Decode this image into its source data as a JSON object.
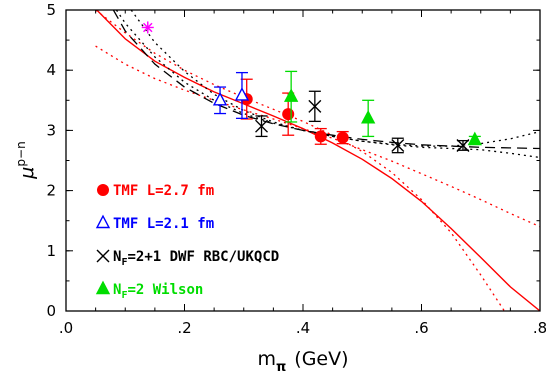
{
  "chart_data": {
    "type": "scatter",
    "title": "",
    "xlabel": {
      "main": "m",
      "sub": "π",
      "unit": "(GeV)"
    },
    "ylabel": {
      "main": "μ",
      "sup": "p−n"
    },
    "xlim": [
      0.0,
      0.8
    ],
    "ylim": [
      0,
      5
    ],
    "xticks": [
      0.0,
      0.2,
      0.4,
      0.6,
      0.8
    ],
    "xtick_labels": [
      ".0",
      ".2",
      ".4",
      ".6",
      ".8"
    ],
    "yticks": [
      0,
      1,
      2,
      3,
      4,
      5
    ],
    "ytick_labels": [
      "0",
      "1",
      "2",
      "3",
      "4",
      "5"
    ],
    "grid": false,
    "legend_position": "bottom-left",
    "series": [
      {
        "name": "TMF L=2.7 fm",
        "legend": {
          "main": "TMF L=2.7 fm"
        },
        "color": "#ff0000",
        "marker": "filled-circle",
        "points": [
          {
            "x": 0.305,
            "y": 3.52,
            "yerr": 0.33
          },
          {
            "x": 0.375,
            "y": 3.27,
            "yerr": 0.35
          },
          {
            "x": 0.43,
            "y": 2.9,
            "yerr": 0.13
          },
          {
            "x": 0.467,
            "y": 2.88,
            "yerr": 0.1
          }
        ]
      },
      {
        "name": "TMF L=2.1 fm",
        "legend": {
          "main": "TMF L=2.1 fm"
        },
        "color": "#0000ff",
        "marker": "open-triangle",
        "points": [
          {
            "x": 0.26,
            "y": 3.5,
            "yerr": 0.22
          },
          {
            "x": 0.297,
            "y": 3.58,
            "yerr": 0.38
          }
        ]
      },
      {
        "name": "NF=2+1 DWF RBC/UKQCD",
        "legend": {
          "pre": "N",
          "sub": "F",
          "post": "=2+1 DWF RBC/UKQCD"
        },
        "color": "#000000",
        "marker": "cross",
        "points": [
          {
            "x": 0.33,
            "y": 3.07,
            "yerr": 0.17
          },
          {
            "x": 0.42,
            "y": 3.4,
            "yerr": 0.25
          },
          {
            "x": 0.56,
            "y": 2.75,
            "yerr": 0.12
          },
          {
            "x": 0.67,
            "y": 2.75,
            "yerr": 0.08
          }
        ]
      },
      {
        "name": "NF=2 Wilson",
        "legend": {
          "pre": "N",
          "sub": "F",
          "post": "=2 Wilson"
        },
        "color": "#00dd00",
        "marker": "filled-triangle",
        "points": [
          {
            "x": 0.38,
            "y": 3.56,
            "yerr": 0.42
          },
          {
            "x": 0.51,
            "y": 3.2,
            "yerr": 0.3
          },
          {
            "x": 0.69,
            "y": 2.84,
            "yerr": 0.06
          }
        ]
      },
      {
        "name": "",
        "color": "#ff00ff",
        "marker": "star",
        "points": [
          {
            "x": 0.138,
            "y": 4.71,
            "yerr": 0
          }
        ]
      }
    ],
    "curves": [
      {
        "style": "solid",
        "color": "#ff0000",
        "x": [
          0.05,
          0.1,
          0.15,
          0.2,
          0.25,
          0.3,
          0.35,
          0.4,
          0.45,
          0.5,
          0.55,
          0.6,
          0.65,
          0.7,
          0.75,
          0.8
        ],
        "y": [
          5.02,
          4.52,
          4.15,
          3.88,
          3.64,
          3.44,
          3.24,
          3.03,
          2.79,
          2.52,
          2.2,
          1.82,
          1.37,
          0.89,
          0.4,
          0.0
        ]
      },
      {
        "style": "dotted",
        "color": "#ff0000",
        "x": [
          0.05,
          0.1,
          0.15,
          0.2,
          0.25,
          0.3,
          0.35,
          0.4,
          0.45,
          0.5,
          0.55,
          0.6,
          0.65,
          0.7,
          0.74
        ],
        "y": [
          5.0,
          4.62,
          4.28,
          4.0,
          3.76,
          3.55,
          3.35,
          3.15,
          2.92,
          2.65,
          2.3,
          1.85,
          1.3,
          0.6,
          0.0
        ]
      },
      {
        "style": "dotted",
        "color": "#ff0000",
        "x": [
          0.05,
          0.1,
          0.15,
          0.2,
          0.25,
          0.3,
          0.35,
          0.4,
          0.45,
          0.5,
          0.55,
          0.6,
          0.65,
          0.7,
          0.75,
          0.8
        ],
        "y": [
          4.4,
          4.1,
          3.86,
          3.67,
          3.5,
          3.34,
          3.19,
          3.03,
          2.87,
          2.68,
          2.49,
          2.28,
          2.07,
          1.85,
          1.62,
          1.4
        ]
      },
      {
        "style": "dashed",
        "color": "#000000",
        "x": [
          0.08,
          0.1,
          0.15,
          0.2,
          0.25,
          0.3,
          0.35,
          0.4,
          0.45,
          0.5,
          0.55,
          0.6,
          0.65,
          0.7,
          0.75,
          0.8
        ],
        "y": [
          5.0,
          4.65,
          4.1,
          3.72,
          3.45,
          3.25,
          3.11,
          3.0,
          2.92,
          2.85,
          2.8,
          2.76,
          2.74,
          2.72,
          2.71,
          2.7
        ]
      },
      {
        "style": "dotted",
        "color": "#000000",
        "x": [
          0.085,
          0.1,
          0.15,
          0.2,
          0.25,
          0.3,
          0.35,
          0.4,
          0.45,
          0.5,
          0.55,
          0.6,
          0.65,
          0.7,
          0.75,
          0.8
        ],
        "y": [
          5.0,
          4.78,
          4.22,
          3.8,
          3.5,
          3.28,
          3.12,
          3.0,
          2.9,
          2.82,
          2.77,
          2.74,
          2.74,
          2.78,
          2.86,
          2.98
        ]
      },
      {
        "style": "dotted",
        "color": "#000000",
        "x": [
          0.11,
          0.15,
          0.2,
          0.25,
          0.3,
          0.35,
          0.4,
          0.45,
          0.5,
          0.55,
          0.6,
          0.65,
          0.7,
          0.75,
          0.8
        ],
        "y": [
          5.0,
          4.46,
          3.98,
          3.6,
          3.33,
          3.14,
          3.0,
          2.9,
          2.82,
          2.76,
          2.72,
          2.7,
          2.68,
          2.62,
          2.55
        ]
      }
    ]
  }
}
